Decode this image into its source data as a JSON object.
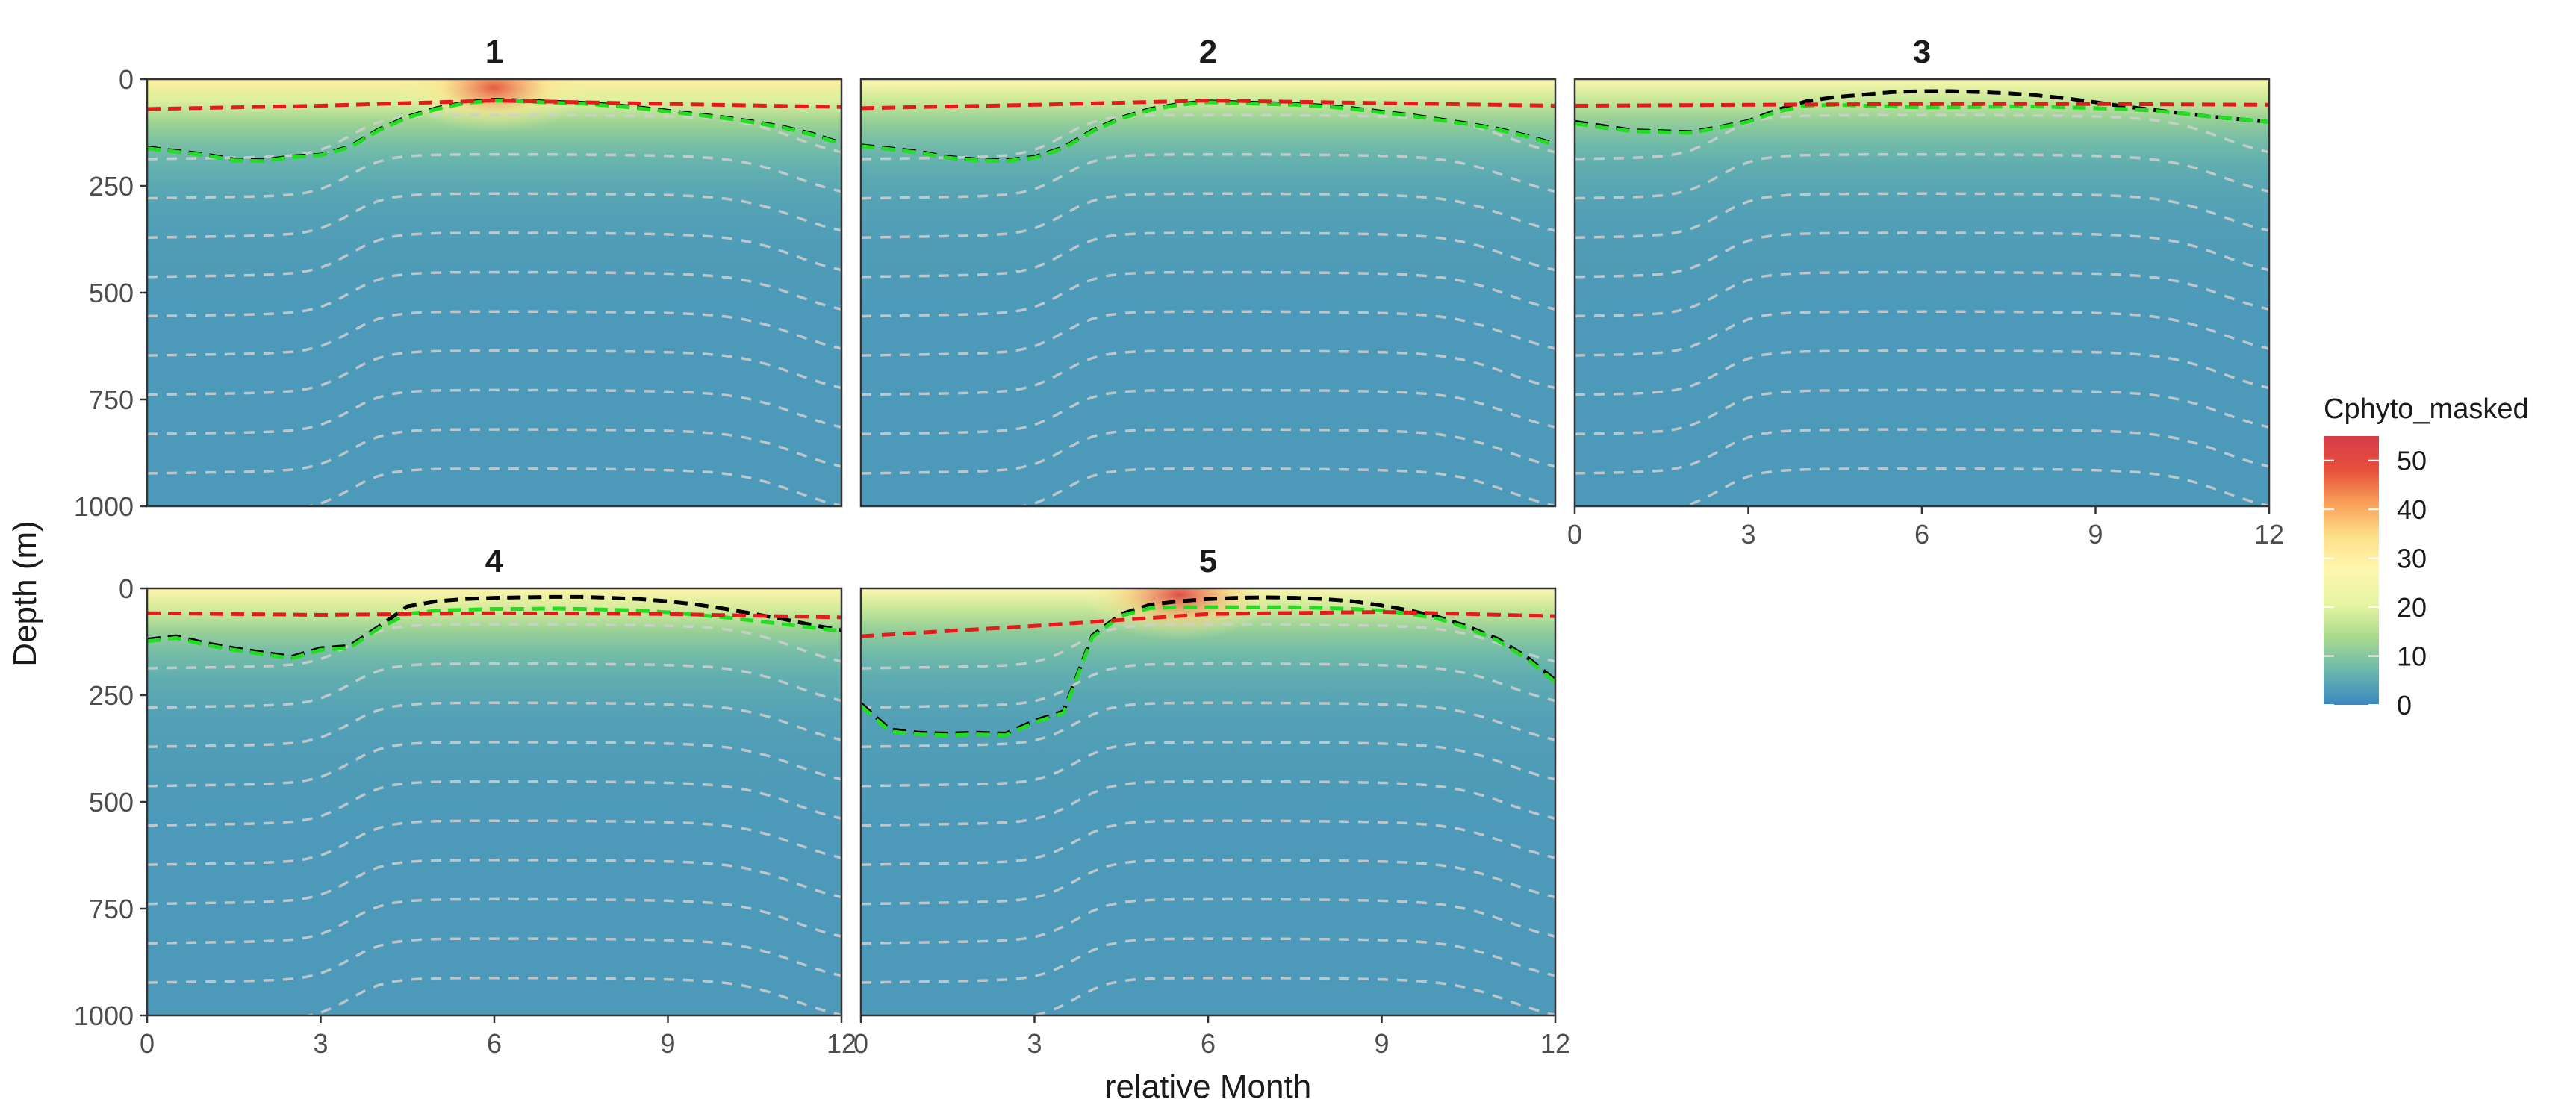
{
  "chart_data": {
    "type": "heatmap",
    "xlabel": "relative Month",
    "ylabel": "Depth (m)",
    "xlim": [
      0,
      12
    ],
    "ylim": [
      1000,
      0
    ],
    "x_ticks": [
      0,
      3,
      6,
      9,
      12
    ],
    "y_ticks": [
      0,
      250,
      500,
      750,
      1000
    ],
    "legend": {
      "title": "Cphyto_masked",
      "placement": "right",
      "ticks": [
        0,
        10,
        20,
        30,
        40,
        50
      ],
      "range": [
        0,
        55
      ],
      "colors": [
        "#3b88c0",
        "#69b6ad",
        "#a8d98e",
        "#e6f5a0",
        "#fff7b0",
        "#fde08a",
        "#f9a05a",
        "#e6503c",
        "#d73c4a"
      ]
    },
    "line_colors": {
      "red_dashed": "#e41a1c",
      "black_dashed": "#000000",
      "green_dashed": "#22dd22",
      "grey_contours": "#cfcfcf"
    },
    "panels": [
      {
        "title": "1",
        "red_dashed": {
          "x": [
            0,
            3,
            6,
            9,
            12
          ],
          "y": [
            70,
            62,
            50,
            58,
            65
          ]
        },
        "black_dashed": {
          "x": [
            0,
            0.5,
            1,
            1.5,
            2,
            2.5,
            3,
            3.5,
            4,
            4.5,
            5,
            5.5,
            6,
            6.5,
            7,
            7.5,
            8,
            8.5,
            9,
            9.5,
            10,
            10.5,
            11,
            11.5,
            12
          ],
          "y": [
            160,
            168,
            176,
            188,
            190,
            181,
            177,
            158,
            118,
            88,
            68,
            54,
            48,
            50,
            53,
            55,
            60,
            66,
            74,
            82,
            90,
            100,
            112,
            128,
            150
          ]
        },
        "green_dashed": {
          "x": [
            0,
            0.5,
            1,
            1.5,
            2,
            2.5,
            3,
            3.5,
            4,
            4.5,
            5,
            5.5,
            6,
            6.5,
            7,
            7.5,
            8,
            8.5,
            9,
            9.5,
            10,
            10.5,
            11,
            11.5,
            12
          ],
          "y": [
            162,
            170,
            178,
            190,
            192,
            183,
            178,
            160,
            120,
            90,
            70,
            56,
            50,
            52,
            55,
            57,
            62,
            68,
            76,
            84,
            92,
            102,
            114,
            130,
            152
          ]
        },
        "blooms": [
          {
            "x": 6.0,
            "y": 20,
            "value": 48
          }
        ],
        "transition_month": 3.5,
        "surface_max": 28
      },
      {
        "title": "2",
        "red_dashed": {
          "x": [
            0,
            3,
            6,
            9,
            12
          ],
          "y": [
            68,
            60,
            50,
            56,
            62
          ]
        },
        "black_dashed": {
          "x": [
            0,
            0.5,
            1,
            1.5,
            2,
            2.5,
            3,
            3.5,
            4,
            4.5,
            5,
            5.5,
            6,
            6.5,
            7,
            7.5,
            8,
            8.5,
            9,
            9.5,
            10,
            10.5,
            11,
            11.5,
            12
          ],
          "y": [
            155,
            162,
            170,
            182,
            188,
            190,
            182,
            160,
            120,
            90,
            70,
            58,
            52,
            54,
            56,
            58,
            62,
            68,
            76,
            84,
            94,
            104,
            116,
            132,
            152
          ]
        },
        "green_dashed": {
          "x": [
            0,
            0.5,
            1,
            1.5,
            2,
            2.5,
            3,
            3.5,
            4,
            4.5,
            5,
            5.5,
            6,
            6.5,
            7,
            7.5,
            8,
            8.5,
            9,
            9.5,
            10,
            10.5,
            11,
            11.5,
            12
          ],
          "y": [
            157,
            164,
            172,
            184,
            190,
            192,
            184,
            162,
            122,
            92,
            72,
            60,
            54,
            56,
            58,
            60,
            64,
            70,
            78,
            86,
            96,
            106,
            118,
            134,
            154
          ]
        },
        "blooms": [],
        "transition_month": 3.5,
        "surface_max": 25
      },
      {
        "title": "3",
        "red_dashed": {
          "x": [
            0,
            3,
            6,
            9,
            12
          ],
          "y": [
            62,
            60,
            58,
            58,
            60
          ]
        },
        "black_dashed": {
          "x": [
            0,
            0.5,
            1,
            1.5,
            2,
            2.5,
            3,
            3.5,
            4,
            4.5,
            5,
            5.5,
            6,
            6.5,
            7,
            7.5,
            8,
            8.5,
            9,
            9.5,
            10,
            10.5,
            11,
            11.5,
            12
          ],
          "y": [
            100,
            110,
            120,
            122,
            124,
            112,
            98,
            72,
            52,
            42,
            36,
            30,
            28,
            28,
            30,
            33,
            38,
            45,
            54,
            64,
            72,
            80,
            88,
            94,
            100
          ]
        },
        "green_dashed": {
          "x": [
            0,
            0.5,
            1,
            1.5,
            2,
            2.5,
            3,
            3.5,
            4,
            4.5,
            5,
            5.5,
            6,
            6.5,
            7,
            7.5,
            8,
            8.5,
            9,
            9.5,
            10,
            10.5,
            11,
            11.5,
            12
          ],
          "y": [
            104,
            114,
            122,
            124,
            126,
            114,
            100,
            76,
            62,
            60,
            62,
            64,
            66,
            66,
            65,
            64,
            64,
            66,
            68,
            70,
            74,
            80,
            88,
            94,
            100
          ]
        },
        "blooms": [],
        "transition_month": 2.5,
        "surface_max": 24
      },
      {
        "title": "4",
        "red_dashed": {
          "x": [
            0,
            3,
            6,
            9,
            12
          ],
          "y": [
            58,
            62,
            58,
            60,
            68
          ]
        },
        "black_dashed": {
          "x": [
            0,
            0.5,
            1,
            1.5,
            2,
            2.5,
            3,
            3.5,
            4,
            4.5,
            5,
            5.5,
            6,
            6.5,
            7,
            7.5,
            8,
            8.5,
            9,
            9.5,
            10,
            10.5,
            11,
            11.5,
            12
          ],
          "y": [
            120,
            112,
            128,
            140,
            150,
            160,
            140,
            135,
            90,
            42,
            30,
            25,
            22,
            21,
            20,
            20,
            22,
            25,
            30,
            38,
            48,
            60,
            72,
            86,
            98
          ]
        },
        "green_dashed": {
          "x": [
            0,
            0.5,
            1,
            1.5,
            2,
            2.5,
            3,
            3.5,
            4,
            4.5,
            5,
            5.5,
            6,
            6.5,
            7,
            7.5,
            8,
            8.5,
            9,
            9.5,
            10,
            10.5,
            11,
            11.5,
            12
          ],
          "y": [
            124,
            116,
            132,
            144,
            154,
            164,
            144,
            139,
            94,
            60,
            52,
            50,
            48,
            48,
            47,
            48,
            50,
            52,
            56,
            62,
            68,
            76,
            84,
            92,
            100
          ]
        },
        "blooms": [],
        "transition_month": 3.5,
        "surface_max": 26
      },
      {
        "title": "5",
        "red_dashed": {
          "x": [
            0,
            3,
            6,
            9,
            12
          ],
          "y": [
            112,
            88,
            60,
            55,
            65
          ]
        },
        "black_dashed": {
          "x": [
            0,
            0.5,
            1,
            1.5,
            2,
            2.5,
            3,
            3.5,
            4,
            4.5,
            5,
            5.5,
            6,
            6.5,
            7,
            7.5,
            8,
            8.5,
            9,
            9.5,
            10,
            10.5,
            11,
            11.5,
            12
          ],
          "y": [
            270,
            330,
            338,
            340,
            338,
            340,
            310,
            288,
            110,
            60,
            38,
            30,
            25,
            22,
            21,
            22,
            25,
            30,
            40,
            52,
            68,
            90,
            118,
            160,
            215
          ]
        },
        "green_dashed": {
          "x": [
            0,
            0.5,
            1,
            1.5,
            2,
            2.5,
            3,
            3.5,
            4,
            4.5,
            5,
            5.5,
            6,
            6.5,
            7,
            7.5,
            8,
            8.5,
            9,
            9.5,
            10,
            10.5,
            11,
            11.5,
            12
          ],
          "y": [
            275,
            335,
            342,
            344,
            342,
            344,
            314,
            292,
            114,
            64,
            46,
            44,
            44,
            44,
            44,
            44,
            46,
            48,
            52,
            60,
            72,
            94,
            122,
            164,
            220
          ]
        },
        "blooms": [
          {
            "x": 5.5,
            "y": 15,
            "value": 52
          }
        ],
        "transition_month": 3.7,
        "surface_max": 24
      }
    ]
  }
}
